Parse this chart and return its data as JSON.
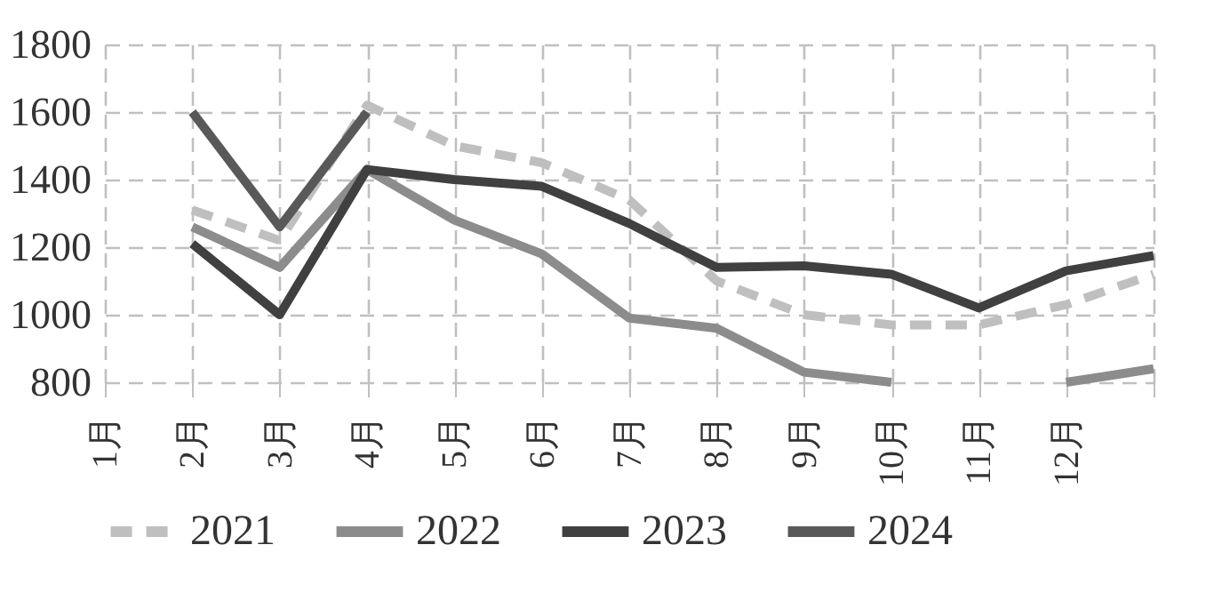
{
  "chart_data": {
    "type": "line",
    "categories": [
      "1月",
      "2月",
      "3月",
      "4月",
      "5月",
      "6月",
      "7月",
      "8月",
      "9月",
      "10月",
      "11月",
      "12月",
      null
    ],
    "series": [
      {
        "name": "2021",
        "color": "#bfbfbf",
        "line_style": "dashed",
        "values": [
          null,
          1310,
          1220,
          1620,
          1500,
          1450,
          1340,
          1100,
          1000,
          970,
          970,
          1030,
          1120
        ]
      },
      {
        "name": "2022",
        "color": "#8c8c8c",
        "line_style": "solid",
        "values": [
          null,
          1260,
          1140,
          1430,
          1280,
          1180,
          990,
          960,
          830,
          800,
          null,
          800,
          840
        ]
      },
      {
        "name": "2023",
        "color": "#404040",
        "line_style": "solid",
        "values": [
          null,
          1210,
          1000,
          1430,
          1400,
          1380,
          1270,
          1140,
          1145,
          1120,
          1020,
          1130,
          1175
        ]
      },
      {
        "name": "2024",
        "color": "#595959",
        "line_style": "solid",
        "values": [
          null,
          1600,
          1260,
          1600,
          null,
          null,
          null,
          null,
          null,
          null,
          null,
          null,
          null
        ]
      }
    ],
    "ylim": [
      800,
      1800
    ],
    "yticks": [
      800,
      1000,
      1200,
      1400,
      1600,
      1800
    ],
    "grid": true,
    "legend": "bottom"
  }
}
